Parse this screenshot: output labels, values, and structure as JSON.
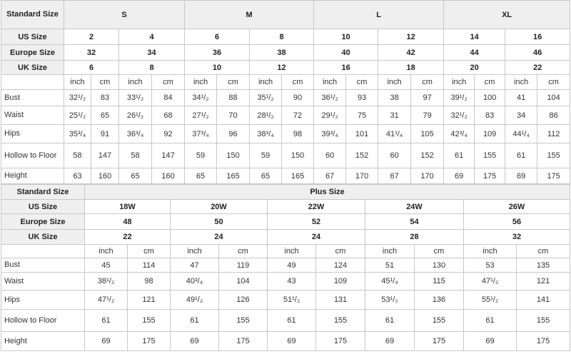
{
  "table1": {
    "header": [
      "Standard Size",
      "S",
      "M",
      "L",
      "XL"
    ],
    "size_rows": [
      {
        "label": "US Size",
        "values": [
          2,
          4,
          6,
          8,
          10,
          12,
          14,
          16
        ]
      },
      {
        "label": "Europe Size",
        "values": [
          32,
          34,
          36,
          38,
          40,
          42,
          44,
          46
        ]
      },
      {
        "label": "UK Size",
        "values": [
          6,
          8,
          10,
          12,
          16,
          18,
          20,
          22
        ]
      }
    ],
    "units": [
      "inch",
      "cm"
    ],
    "rows": [
      {
        "label": "Bust",
        "values": [
          "32¹/₂",
          83,
          "33¹/₂",
          84,
          "34¹/₂",
          88,
          "35¹/₂",
          90,
          "36¹/₂",
          93,
          38,
          97,
          "39¹/₂",
          100,
          41,
          104
        ]
      },
      {
        "label": "Waist",
        "values": [
          "25¹/₂",
          65,
          "26¹/₂",
          68,
          "27¹/₂",
          70,
          "28¹/₂",
          72,
          "29¹/₂",
          75,
          31,
          79,
          "32¹/₂",
          83,
          34,
          86
        ]
      },
      {
        "label": "Hips",
        "values": [
          "35³/₄",
          91,
          "36³/₄",
          92,
          "37³/₄",
          96,
          "38³/₄",
          98,
          "39³/₄",
          101,
          "41¹/₄",
          105,
          "42³/₄",
          109,
          "44¹/₄",
          112
        ]
      },
      {
        "label": "Hollow to Floor",
        "values": [
          58,
          147,
          58,
          147,
          59,
          150,
          59,
          150,
          60,
          152,
          60,
          152,
          61,
          155,
          61,
          155
        ]
      },
      {
        "label": "Height",
        "values": [
          63,
          160,
          65,
          160,
          65,
          165,
          65,
          165,
          67,
          170,
          67,
          170,
          69,
          175,
          69,
          175
        ]
      }
    ]
  },
  "table2": {
    "header": [
      "Standard Size",
      "Plus Size"
    ],
    "size_rows": [
      {
        "label": "US Size",
        "values": [
          "18W",
          "20W",
          "22W",
          "24W",
          "26W"
        ]
      },
      {
        "label": "Europe Size",
        "values": [
          48,
          50,
          52,
          54,
          56
        ]
      },
      {
        "label": "UK Size",
        "values": [
          22,
          24,
          24,
          28,
          32
        ]
      }
    ],
    "units": [
      "inch",
      "cm"
    ],
    "rows": [
      {
        "label": "Bust",
        "values": [
          45,
          114,
          47,
          119,
          49,
          124,
          51,
          130,
          53,
          135
        ]
      },
      {
        "label": "Waist",
        "values": [
          "38¹/₂",
          98,
          "40³/₄",
          104,
          43,
          109,
          "45¹/₄",
          115,
          "47¹/₂",
          121
        ]
      },
      {
        "label": "Hips",
        "values": [
          "47¹/₂",
          121,
          "49¹/₂",
          126,
          "51¹/₂",
          131,
          "53¹/₂",
          136,
          "55¹/₂",
          141
        ]
      },
      {
        "label": "Hollow to Floor",
        "values": [
          61,
          155,
          61,
          155,
          61,
          155,
          61,
          155,
          61,
          155
        ]
      },
      {
        "label": "Height",
        "values": [
          69,
          175,
          69,
          175,
          69,
          175,
          69,
          175,
          69,
          175
        ]
      }
    ]
  }
}
